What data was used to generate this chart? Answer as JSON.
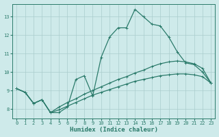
{
  "xlabel": "Humidex (Indice chaleur)",
  "ylabel": "",
  "bg_color": "#ceeaea",
  "line_color": "#2a7a6a",
  "grid_color": "#aacccc",
  "xlim": [
    -0.5,
    23.5
  ],
  "ylim": [
    7.5,
    13.7
  ],
  "xticks": [
    0,
    1,
    2,
    3,
    4,
    5,
    6,
    7,
    8,
    9,
    10,
    11,
    12,
    13,
    14,
    15,
    16,
    17,
    18,
    19,
    20,
    21,
    22,
    23
  ],
  "yticks": [
    8,
    9,
    10,
    11,
    12,
    13
  ],
  "series1_x": [
    0,
    1,
    2,
    3,
    4,
    5,
    6,
    7,
    8,
    9,
    10,
    11,
    12,
    13,
    14,
    15,
    16,
    17,
    18,
    19,
    20,
    21,
    22,
    23
  ],
  "series1_y": [
    9.1,
    8.9,
    8.3,
    8.5,
    7.8,
    7.8,
    8.1,
    9.6,
    9.8,
    8.7,
    10.8,
    11.9,
    12.4,
    12.4,
    13.4,
    13.0,
    12.6,
    12.5,
    11.9,
    11.1,
    10.5,
    10.4,
    10.0,
    9.4
  ],
  "series2_x": [
    0,
    1,
    2,
    3,
    4,
    5,
    6,
    7,
    8,
    9,
    10,
    11,
    12,
    13,
    14,
    15,
    16,
    17,
    18,
    19,
    20,
    21,
    22,
    23
  ],
  "series2_y": [
    9.1,
    8.9,
    8.3,
    8.5,
    7.8,
    8.1,
    8.35,
    8.55,
    8.8,
    9.0,
    9.2,
    9.4,
    9.6,
    9.75,
    9.95,
    10.1,
    10.3,
    10.45,
    10.55,
    10.6,
    10.55,
    10.45,
    10.2,
    9.4
  ],
  "series3_x": [
    0,
    1,
    2,
    3,
    4,
    5,
    6,
    7,
    8,
    9,
    10,
    11,
    12,
    13,
    14,
    15,
    16,
    17,
    18,
    19,
    20,
    21,
    22,
    23
  ],
  "series3_y": [
    9.1,
    8.9,
    8.3,
    8.5,
    7.8,
    7.95,
    8.15,
    8.35,
    8.55,
    8.75,
    8.9,
    9.05,
    9.2,
    9.35,
    9.5,
    9.6,
    9.7,
    9.8,
    9.85,
    9.9,
    9.9,
    9.85,
    9.75,
    9.4
  ]
}
